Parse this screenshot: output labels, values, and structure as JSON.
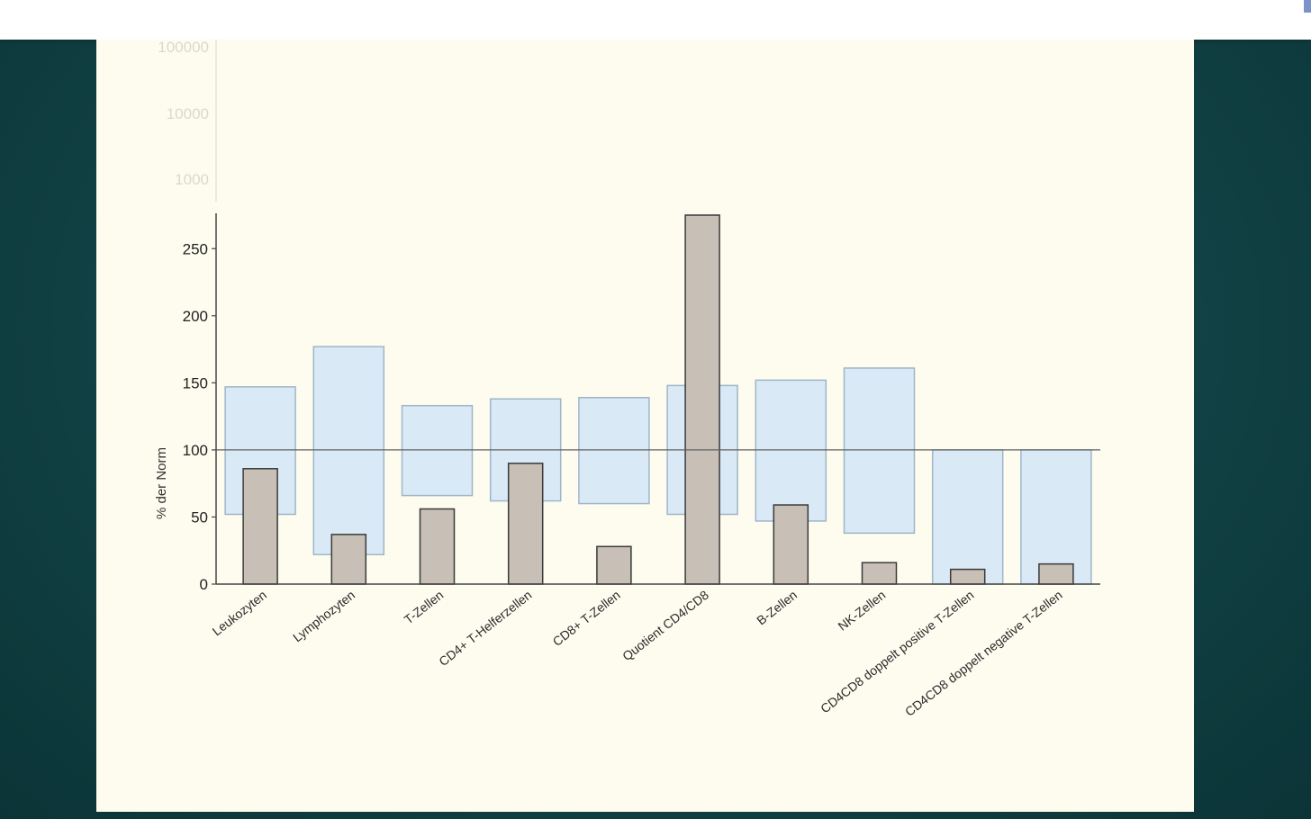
{
  "colors": {
    "background": "#124447",
    "slide": "#fdfcef",
    "range_fill": "#d9e9f6",
    "range_stroke": "#9fb6c8",
    "bar_fill": "#c8bfb6",
    "bar_stroke": "#3a3a3a",
    "axis": "#444444",
    "reference_line": "#606060",
    "faded_tick": "#d9d9cf"
  },
  "chart_data": {
    "type": "bar",
    "ylabel": "% der Norm",
    "ylim": [
      0,
      275
    ],
    "yticks": [
      0,
      50,
      100,
      150,
      200,
      250
    ],
    "faded_log_ticks": [
      "100000",
      "10000",
      "1000"
    ],
    "reference_line": 100,
    "grid": false,
    "categories": [
      "Leukozyten",
      "Lymphozyten",
      "T-Zellen",
      "CD4+ T-Helferzellen",
      "CD8+ T-Zellen",
      "Quotient CD4/CD8",
      "B-Zellen",
      "NK-Zellen",
      "CD4CD8 doppelt positive T-Zellen",
      "CD4CD8 doppelt negative T-Zellen"
    ],
    "series": [
      {
        "name": "",
        "values": [
          86,
          37,
          56,
          90,
          28,
          275,
          59,
          16,
          11,
          15
        ]
      }
    ],
    "reference_ranges": [
      [
        52,
        147
      ],
      [
        22,
        177
      ],
      [
        66,
        133
      ],
      [
        62,
        138
      ],
      [
        60,
        139
      ],
      [
        52,
        148
      ],
      [
        47,
        152
      ],
      [
        38,
        161
      ],
      [
        0,
        100
      ],
      [
        0,
        100
      ]
    ]
  }
}
